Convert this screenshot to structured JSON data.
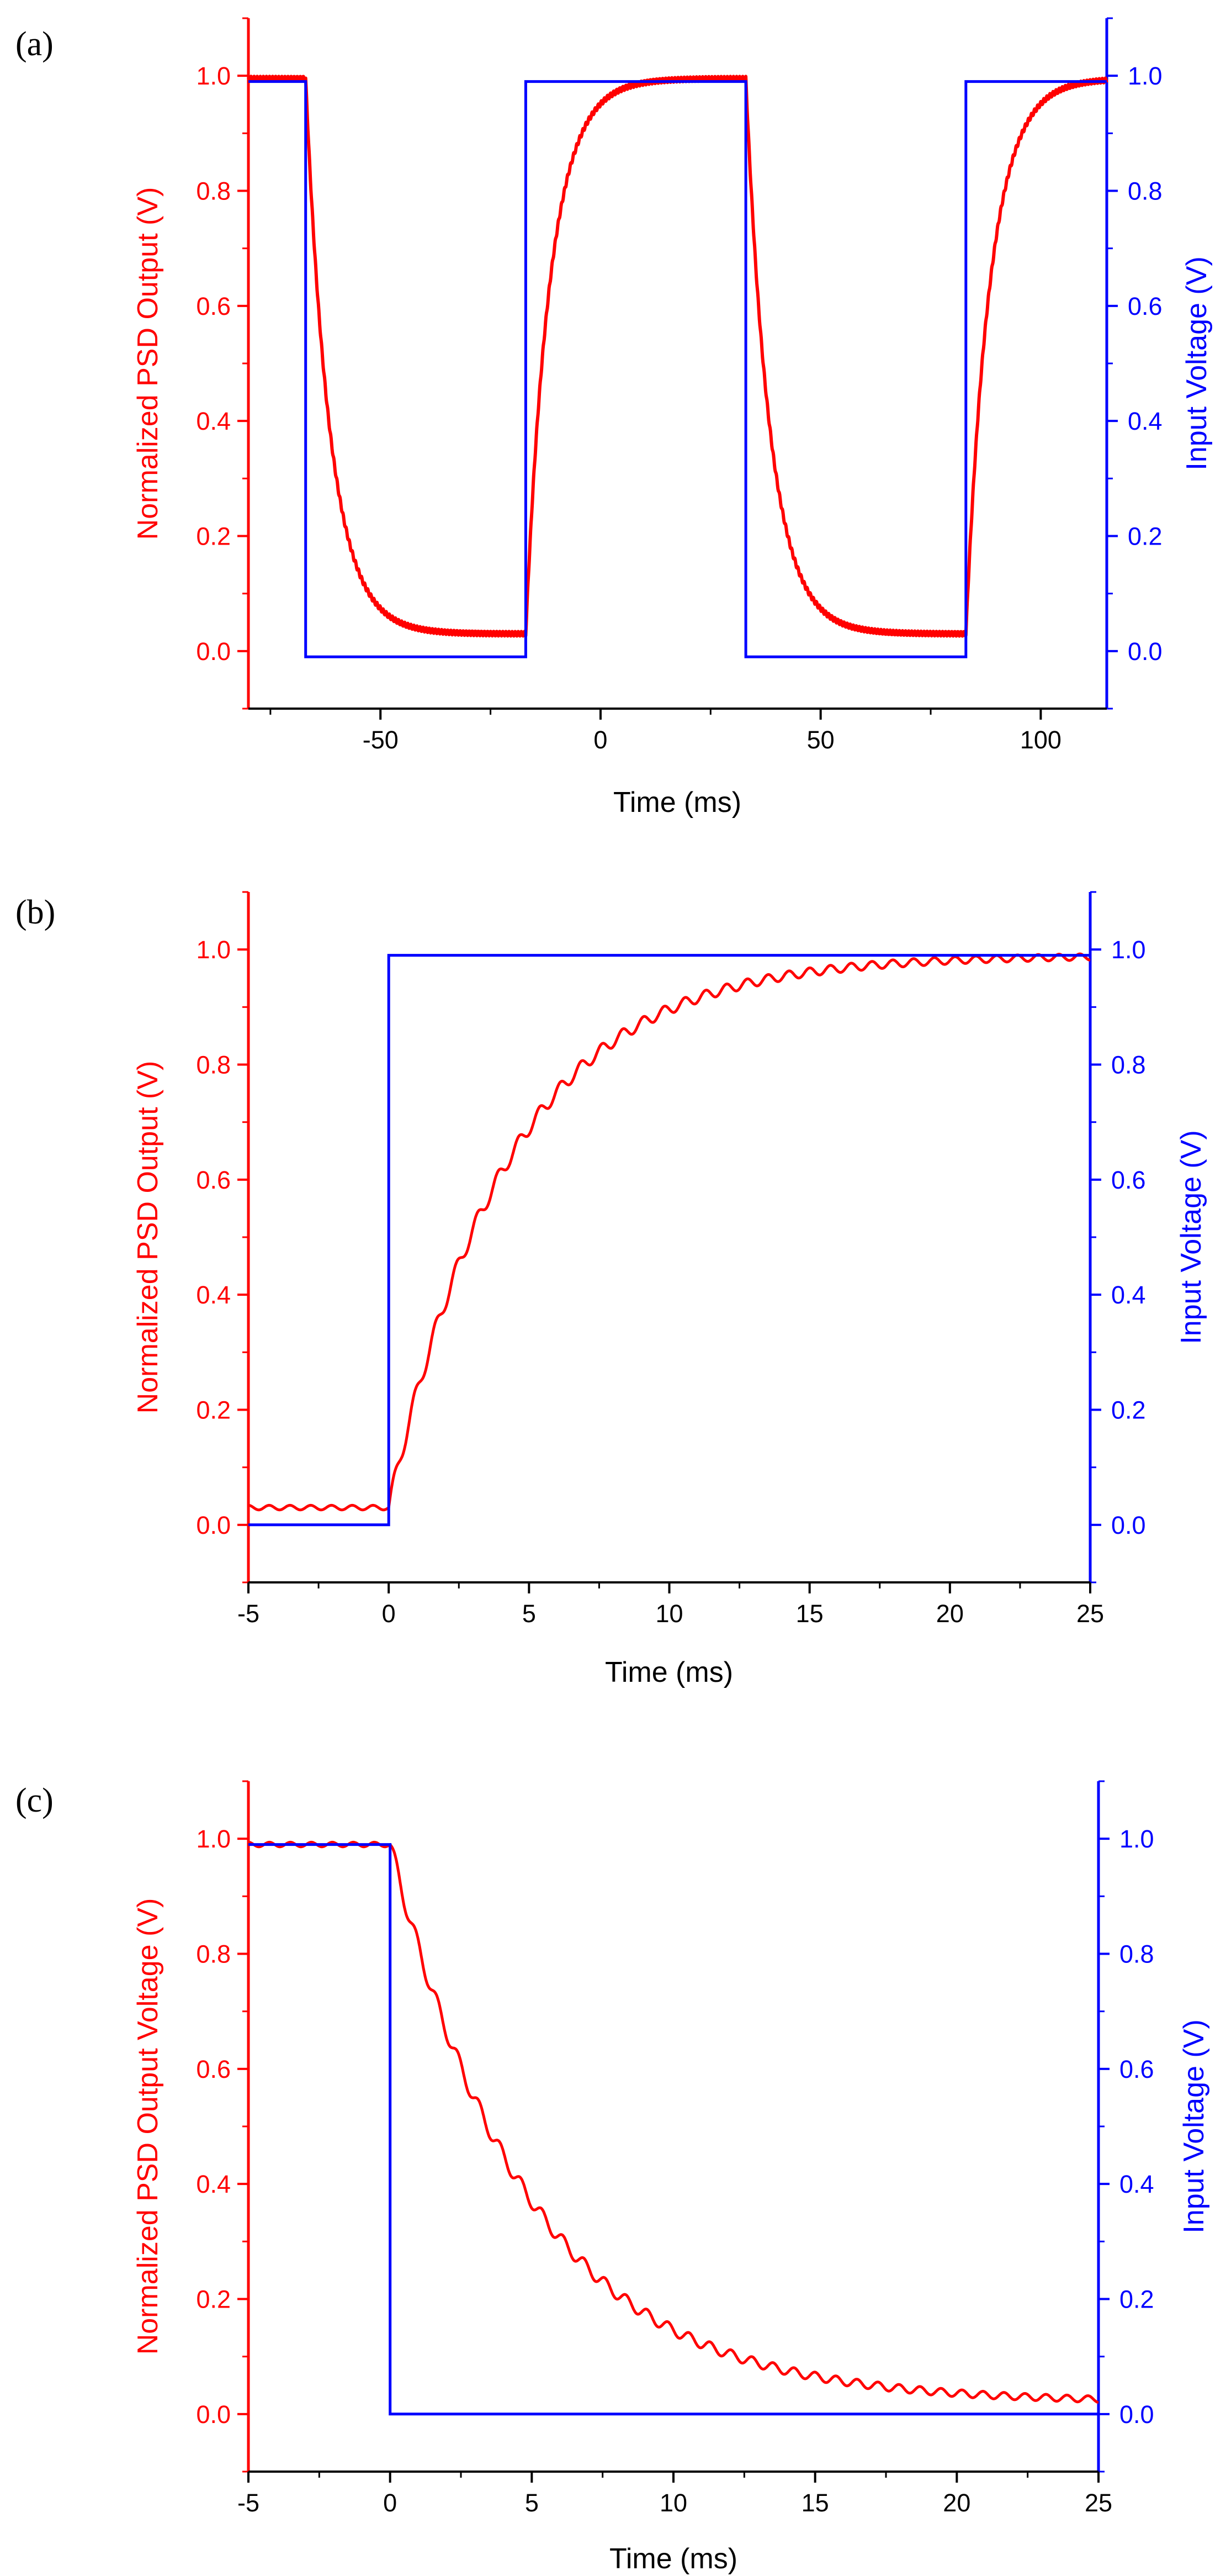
{
  "colors": {
    "psd": "#ff0000",
    "input": "#0000ff",
    "axis_x": "#000000"
  },
  "chart_data": [
    {
      "panel": "(a)",
      "type": "line",
      "xlabel": "Time (ms)",
      "ylabel_left": "Normalized PSD Output (V)",
      "ylabel_right": "Input Voltage (V)",
      "xlim": [
        -80,
        115
      ],
      "ylim": [
        -0.1,
        1.1
      ],
      "x_ticks": [
        -50,
        0,
        50,
        100
      ],
      "y_ticks": [
        0.0,
        0.2,
        0.4,
        0.6,
        0.8,
        1.0
      ],
      "y_tick_labels": [
        "0.0",
        "0.2",
        "0.4",
        "0.6",
        "0.8",
        "1.0"
      ],
      "transitions_ms": [
        -67,
        -17,
        33,
        83
      ],
      "time_constant_ms": 5.5,
      "psd_high": 0.995,
      "psd_low": 0.03,
      "input_high": 0.99,
      "input_low": -0.01,
      "series": [
        {
          "name": "Normalized PSD Output",
          "axis": "left",
          "color": "#ff0000"
        },
        {
          "name": "Input Voltage",
          "axis": "right",
          "color": "#0000ff"
        }
      ]
    },
    {
      "panel": "(b)",
      "type": "line",
      "xlabel": "Time (ms)",
      "ylabel_left": "Normalized PSD Output (V)",
      "ylabel_right": "Input Voltage (V)",
      "xlim": [
        -5,
        25
      ],
      "ylim": [
        -0.1,
        1.1
      ],
      "x_ticks": [
        -5,
        0,
        5,
        10,
        15,
        20,
        25
      ],
      "y_ticks": [
        0.0,
        0.2,
        0.4,
        0.6,
        0.8,
        1.0
      ],
      "y_tick_labels": [
        "0.0",
        "0.2",
        "0.4",
        "0.6",
        "0.8",
        "1.0"
      ],
      "step_ms": 0,
      "direction": "rise",
      "time_constant_ms": 4.3,
      "psd_high": 0.99,
      "psd_low": 0.03,
      "input_high": 0.99,
      "input_low": 0.0,
      "series": [
        {
          "name": "Normalized PSD Output",
          "axis": "left",
          "color": "#ff0000"
        },
        {
          "name": "Input Voltage",
          "axis": "right",
          "color": "#0000ff"
        }
      ]
    },
    {
      "panel": "(c)",
      "type": "line",
      "xlabel": "Time (ms)",
      "ylabel_left": "Normalized PSD Output Voltage (V)",
      "ylabel_right": "Input Voltage (V)",
      "xlim": [
        -5,
        25
      ],
      "ylim": [
        -0.1,
        1.1
      ],
      "x_ticks": [
        -5,
        0,
        5,
        10,
        15,
        20,
        25
      ],
      "y_ticks": [
        0.0,
        0.2,
        0.4,
        0.6,
        0.8,
        1.0
      ],
      "y_tick_labels": [
        "0.0",
        "0.2",
        "0.4",
        "0.6",
        "0.8",
        "1.0"
      ],
      "step_ms": 0,
      "direction": "fall",
      "time_constant_ms": 4.9,
      "psd_high": 0.99,
      "psd_low": 0.02,
      "input_high": 0.99,
      "input_low": 0.0,
      "series": [
        {
          "name": "Normalized PSD Output",
          "axis": "left",
          "color": "#ff0000"
        },
        {
          "name": "Input Voltage",
          "axis": "right",
          "color": "#0000ff"
        }
      ]
    }
  ]
}
